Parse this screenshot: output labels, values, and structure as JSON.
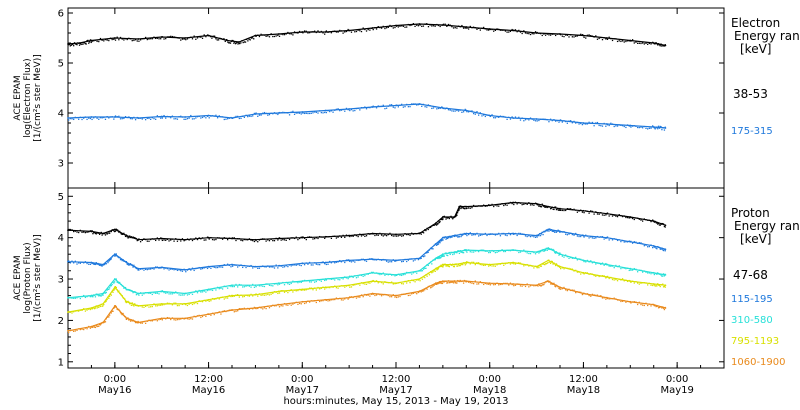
{
  "chart_data": [
    {
      "type": "scatter",
      "ylabel_lines": [
        "ACE EPAM",
        "log(Electron Flux)",
        "[1/(cm²s ster MeV)]"
      ],
      "legend_title_lines": [
        "Electron",
        "Energy ran",
        "[keV]"
      ],
      "ylim": [
        2.5,
        6.1
      ],
      "yticks": [
        3,
        4,
        5,
        6
      ],
      "grid": false,
      "series": [
        {
          "name": "38-53",
          "color": "#000000",
          "points": [
            [
              0,
              5.38
            ],
            [
              0.5,
              5.4
            ],
            [
              1,
              5.45
            ],
            [
              2,
              5.5
            ],
            [
              3,
              5.48
            ],
            [
              4,
              5.52
            ],
            [
              5,
              5.5
            ],
            [
              6,
              5.55
            ],
            [
              6.8,
              5.45
            ],
            [
              7.3,
              5.42
            ],
            [
              8,
              5.55
            ],
            [
              9,
              5.58
            ],
            [
              10,
              5.62
            ],
            [
              11,
              5.62
            ],
            [
              12,
              5.65
            ],
            [
              13,
              5.7
            ],
            [
              14,
              5.75
            ],
            [
              15,
              5.78
            ],
            [
              16,
              5.76
            ],
            [
              17,
              5.72
            ],
            [
              18,
              5.68
            ],
            [
              19,
              5.65
            ],
            [
              20,
              5.6
            ],
            [
              21,
              5.58
            ],
            [
              22,
              5.55
            ],
            [
              23,
              5.5
            ],
            [
              24,
              5.45
            ],
            [
              25,
              5.4
            ],
            [
              25.5,
              5.35
            ]
          ]
        },
        {
          "name": "175-315",
          "color": "#1e78dc",
          "points": [
            [
              0,
              3.9
            ],
            [
              1,
              3.92
            ],
            [
              2,
              3.92
            ],
            [
              3,
              3.9
            ],
            [
              4,
              3.93
            ],
            [
              5,
              3.92
            ],
            [
              6,
              3.95
            ],
            [
              7,
              3.9
            ],
            [
              8,
              3.98
            ],
            [
              9,
              4.0
            ],
            [
              10,
              4.02
            ],
            [
              11,
              4.05
            ],
            [
              12,
              4.08
            ],
            [
              13,
              4.12
            ],
            [
              14,
              4.15
            ],
            [
              15,
              4.18
            ],
            [
              16,
              4.1
            ],
            [
              17,
              4.05
            ],
            [
              18,
              3.95
            ],
            [
              19,
              3.9
            ],
            [
              20,
              3.88
            ],
            [
              21,
              3.85
            ],
            [
              22,
              3.8
            ],
            [
              23,
              3.78
            ],
            [
              24,
              3.75
            ],
            [
              25,
              3.72
            ],
            [
              25.5,
              3.7
            ]
          ]
        }
      ]
    },
    {
      "type": "scatter",
      "ylabel_lines": [
        "ACE EPAM",
        "log(Proton Flux)",
        "[1/(cm²s ster MeV)]"
      ],
      "legend_title_lines": [
        "Proton",
        "Energy ran",
        "[keV]"
      ],
      "ylim": [
        0.85,
        5.2
      ],
      "yticks": [
        1,
        2,
        3,
        4,
        5
      ],
      "grid": false,
      "series": [
        {
          "name": "47-68",
          "color": "#000000",
          "points": [
            [
              0,
              4.18
            ],
            [
              1,
              4.15
            ],
            [
              1.5,
              4.1
            ],
            [
              2,
              4.2
            ],
            [
              2.5,
              4.05
            ],
            [
              3,
              3.95
            ],
            [
              4,
              3.98
            ],
            [
              5,
              3.95
            ],
            [
              6,
              4.0
            ],
            [
              7,
              3.98
            ],
            [
              8,
              3.95
            ],
            [
              9,
              3.98
            ],
            [
              10,
              4.0
            ],
            [
              11,
              4.02
            ],
            [
              12,
              4.05
            ],
            [
              13,
              4.1
            ],
            [
              14,
              4.08
            ],
            [
              15,
              4.1
            ],
            [
              15.7,
              4.35
            ],
            [
              16,
              4.5
            ],
            [
              16.5,
              4.5
            ],
            [
              16.7,
              4.75
            ],
            [
              17,
              4.75
            ],
            [
              18,
              4.78
            ],
            [
              19,
              4.85
            ],
            [
              20,
              4.82
            ],
            [
              20.5,
              4.75
            ],
            [
              21,
              4.7
            ],
            [
              22,
              4.65
            ],
            [
              23,
              4.58
            ],
            [
              24,
              4.5
            ],
            [
              25,
              4.4
            ],
            [
              25.5,
              4.3
            ]
          ]
        },
        {
          "name": "115-195",
          "color": "#1e78dc",
          "points": [
            [
              0,
              3.42
            ],
            [
              1,
              3.4
            ],
            [
              1.5,
              3.35
            ],
            [
              2,
              3.6
            ],
            [
              2.5,
              3.4
            ],
            [
              3,
              3.25
            ],
            [
              4,
              3.28
            ],
            [
              5,
              3.22
            ],
            [
              6,
              3.3
            ],
            [
              7,
              3.35
            ],
            [
              8,
              3.3
            ],
            [
              9,
              3.32
            ],
            [
              10,
              3.38
            ],
            [
              11,
              3.4
            ],
            [
              12,
              3.45
            ],
            [
              13,
              3.48
            ],
            [
              14,
              3.45
            ],
            [
              15,
              3.5
            ],
            [
              15.7,
              3.85
            ],
            [
              16,
              4.0
            ],
            [
              16.5,
              4.05
            ],
            [
              17,
              4.1
            ],
            [
              18,
              4.08
            ],
            [
              19,
              4.1
            ],
            [
              20,
              4.05
            ],
            [
              20.5,
              4.2
            ],
            [
              21,
              4.15
            ],
            [
              22,
              4.05
            ],
            [
              23,
              4.0
            ],
            [
              24,
              3.9
            ],
            [
              25,
              3.8
            ],
            [
              25.5,
              3.72
            ]
          ]
        },
        {
          "name": "310-580",
          "color": "#27e0d8",
          "points": [
            [
              0,
              2.55
            ],
            [
              1,
              2.6
            ],
            [
              1.5,
              2.65
            ],
            [
              2,
              3.0
            ],
            [
              2.5,
              2.75
            ],
            [
              3,
              2.65
            ],
            [
              4,
              2.7
            ],
            [
              5,
              2.65
            ],
            [
              6,
              2.75
            ],
            [
              7,
              2.85
            ],
            [
              8,
              2.85
            ],
            [
              9,
              2.9
            ],
            [
              10,
              2.95
            ],
            [
              11,
              3.0
            ],
            [
              12,
              3.05
            ],
            [
              13,
              3.15
            ],
            [
              14,
              3.1
            ],
            [
              15,
              3.2
            ],
            [
              15.7,
              3.5
            ],
            [
              16,
              3.6
            ],
            [
              16.5,
              3.65
            ],
            [
              17,
              3.7
            ],
            [
              18,
              3.68
            ],
            [
              19,
              3.7
            ],
            [
              20,
              3.65
            ],
            [
              20.5,
              3.75
            ],
            [
              21,
              3.6
            ],
            [
              22,
              3.45
            ],
            [
              23,
              3.35
            ],
            [
              24,
              3.25
            ],
            [
              25,
              3.15
            ],
            [
              25.5,
              3.1
            ]
          ]
        },
        {
          "name": "795-1193",
          "color": "#d8e000",
          "points": [
            [
              0,
              2.2
            ],
            [
              1,
              2.3
            ],
            [
              1.5,
              2.4
            ],
            [
              2,
              2.8
            ],
            [
              2.5,
              2.45
            ],
            [
              3,
              2.35
            ],
            [
              4,
              2.4
            ],
            [
              5,
              2.4
            ],
            [
              6,
              2.5
            ],
            [
              7,
              2.6
            ],
            [
              8,
              2.62
            ],
            [
              9,
              2.7
            ],
            [
              10,
              2.75
            ],
            [
              11,
              2.8
            ],
            [
              12,
              2.85
            ],
            [
              13,
              2.95
            ],
            [
              14,
              2.9
            ],
            [
              15,
              3.0
            ],
            [
              15.7,
              3.25
            ],
            [
              16,
              3.35
            ],
            [
              16.5,
              3.35
            ],
            [
              17,
              3.4
            ],
            [
              18,
              3.35
            ],
            [
              19,
              3.4
            ],
            [
              20,
              3.3
            ],
            [
              20.5,
              3.45
            ],
            [
              21,
              3.3
            ],
            [
              22,
              3.15
            ],
            [
              23,
              3.05
            ],
            [
              24,
              2.95
            ],
            [
              25,
              2.88
            ],
            [
              25.5,
              2.85
            ]
          ]
        },
        {
          "name": "1060-1900",
          "color": "#e98a1c",
          "points": [
            [
              0,
              1.75
            ],
            [
              1,
              1.85
            ],
            [
              1.5,
              1.95
            ],
            [
              2,
              2.35
            ],
            [
              2.5,
              2.05
            ],
            [
              3,
              1.95
            ],
            [
              4,
              2.05
            ],
            [
              5,
              2.05
            ],
            [
              6,
              2.15
            ],
            [
              7,
              2.25
            ],
            [
              8,
              2.3
            ],
            [
              9,
              2.38
            ],
            [
              10,
              2.45
            ],
            [
              11,
              2.5
            ],
            [
              12,
              2.55
            ],
            [
              13,
              2.65
            ],
            [
              14,
              2.6
            ],
            [
              15,
              2.7
            ],
            [
              15.7,
              2.9
            ],
            [
              16,
              2.95
            ],
            [
              16.5,
              2.95
            ],
            [
              17,
              2.95
            ],
            [
              18,
              2.9
            ],
            [
              19,
              2.88
            ],
            [
              20,
              2.85
            ],
            [
              20.5,
              2.95
            ],
            [
              21,
              2.8
            ],
            [
              22,
              2.65
            ],
            [
              23,
              2.55
            ],
            [
              24,
              2.45
            ],
            [
              25,
              2.38
            ],
            [
              25.5,
              2.3
            ]
          ]
        }
      ]
    }
  ],
  "x_axis": {
    "range_hours": [
      0,
      28
    ],
    "ticks": [
      {
        "h": 2,
        "time": "0:00",
        "date": "May16"
      },
      {
        "h": 6,
        "time": "12:00",
        "date": "May16"
      },
      {
        "h": 10,
        "time": "0:00",
        "date": "May17"
      },
      {
        "h": 14,
        "time": "12:00",
        "date": "May17"
      },
      {
        "h": 18,
        "time": "0:00",
        "date": "May18"
      },
      {
        "h": 22,
        "time": "12:00",
        "date": "May18"
      },
      {
        "h": 26,
        "time": "0:00",
        "date": "May19"
      }
    ],
    "label": "hours:minutes, May 15, 2013 - May 19, 2013"
  }
}
